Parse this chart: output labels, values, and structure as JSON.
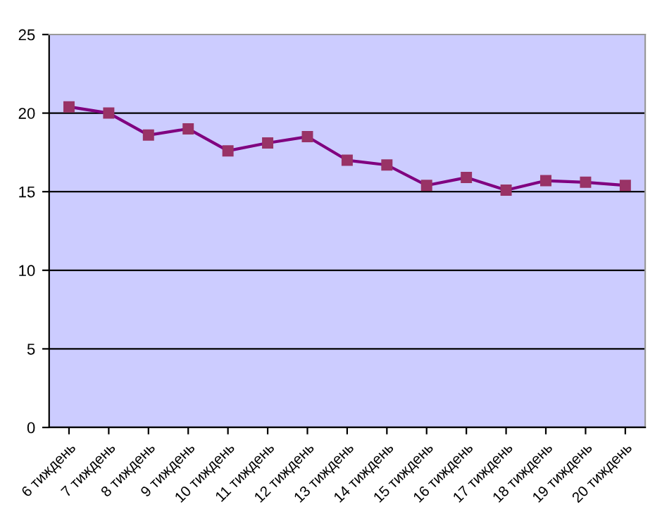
{
  "chart_data": {
    "type": "line",
    "categories": [
      "6 тиждень",
      "7 тиждень",
      "8 тиждень",
      "9 тиждень",
      "10 тиждень",
      "11 тиждень",
      "12 тиждень",
      "13 тиждень",
      "14 тиждень",
      "15 тиждень",
      "16 тиждень",
      "17 тиждень",
      "18 тиждень",
      "19 тиждень",
      "20 тиждень"
    ],
    "series": [
      {
        "color": "#800080",
        "values": [
          20.4,
          20.0,
          18.6,
          19.0,
          17.6,
          18.1,
          18.5,
          17.0,
          16.7,
          15.4,
          15.9,
          15.1,
          15.7,
          15.6,
          15.4
        ]
      }
    ],
    "ylim": [
      0,
      25
    ],
    "yticks": [
      0,
      5,
      10,
      15,
      20,
      25
    ],
    "grid": "y",
    "marker": "square",
    "legend": false
  }
}
